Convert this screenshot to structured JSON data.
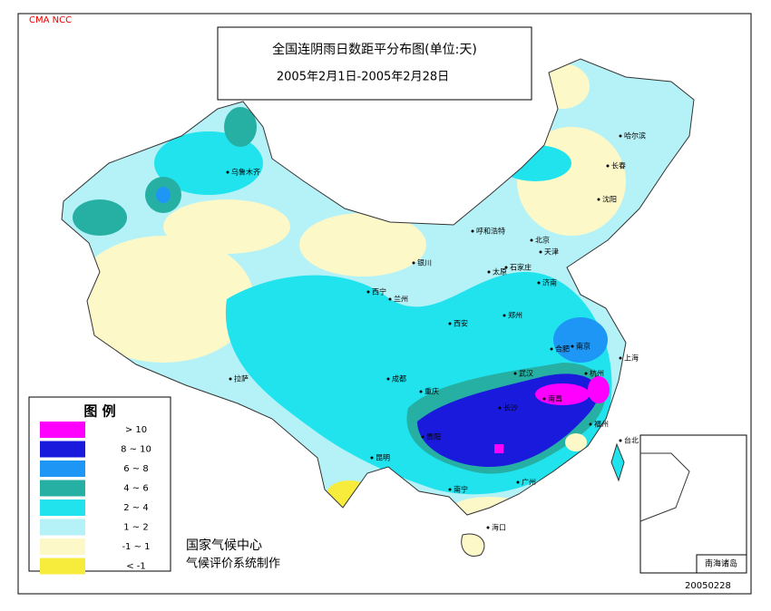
{
  "header": {
    "agency": "CMA NCC",
    "title": "全国连阴雨日数距平分布图(单位:天)",
    "subtitle": "2005年2月1日-2005年2月28日"
  },
  "legend": {
    "title": "图 例",
    "items": [
      {
        "label": "> 10",
        "color": "#ff00ff"
      },
      {
        "label": "8 ~ 10",
        "color": "#1a1adc"
      },
      {
        "label": "6 ~ 8",
        "color": "#1e96f5"
      },
      {
        "label": "4 ~ 6",
        "color": "#26b0a4"
      },
      {
        "label": "2 ~ 4",
        "color": "#20e3ee"
      },
      {
        "label": "1 ~ 2",
        "color": "#b4f2f8"
      },
      {
        "label": "-1 ~ 1",
        "color": "#fdf8c8"
      },
      {
        "label": "< -1",
        "color": "#f7ec3c"
      }
    ]
  },
  "footer": {
    "org": "国家气候中心",
    "maker": "气候评价系统制作",
    "date": "20050228"
  },
  "inset": {
    "label": "南海诸岛"
  },
  "cities": [
    "乌鲁木齐",
    "拉萨",
    "西宁",
    "兰州",
    "银川",
    "呼和浩特",
    "北京",
    "天津",
    "石家庄",
    "太原",
    "济南",
    "郑州",
    "西安",
    "成都",
    "重庆",
    "贵阳",
    "昆明",
    "南宁",
    "广州",
    "海口",
    "长沙",
    "武汉",
    "南昌",
    "福州",
    "台北",
    "合肥",
    "南京",
    "上海",
    "杭州",
    "沈阳",
    "长春",
    "哈尔滨"
  ]
}
